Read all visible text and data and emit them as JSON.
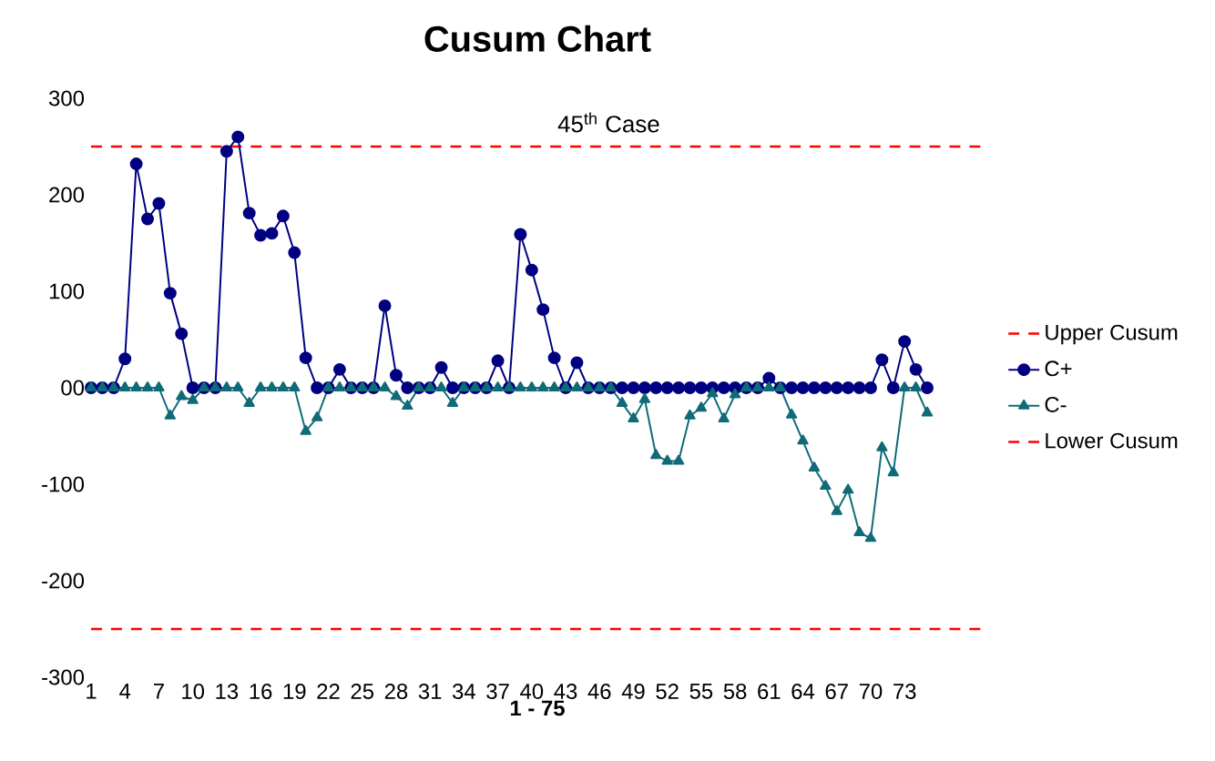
{
  "chart_data": {
    "type": "line",
    "title": "Cusum Chart",
    "xlabel": "1 - 75",
    "x": [
      1,
      2,
      3,
      4,
      5,
      6,
      7,
      8,
      9,
      10,
      11,
      12,
      13,
      14,
      15,
      16,
      17,
      18,
      19,
      20,
      21,
      22,
      23,
      24,
      25,
      26,
      27,
      28,
      29,
      30,
      31,
      32,
      33,
      34,
      35,
      36,
      37,
      38,
      39,
      40,
      41,
      42,
      43,
      44,
      45,
      46,
      47,
      48,
      49,
      50,
      51,
      52,
      53,
      54,
      55,
      56,
      57,
      58,
      59,
      60,
      61,
      62,
      63,
      64,
      65,
      66,
      67,
      68,
      69,
      70,
      71,
      72,
      73,
      74,
      75
    ],
    "series": [
      {
        "name": "C+",
        "color": "#000080",
        "marker": "circle",
        "values": [
          0,
          0,
          0,
          30,
          232,
          175,
          191,
          98,
          56,
          0,
          0,
          0,
          245,
          260,
          181,
          158,
          160,
          178,
          140,
          31,
          0,
          0,
          19,
          0,
          0,
          0,
          85,
          13,
          0,
          0,
          0,
          21,
          0,
          0,
          0,
          0,
          28,
          0,
          159,
          122,
          81,
          31,
          0,
          26,
          0,
          0,
          0,
          0,
          0,
          0,
          0,
          0,
          0,
          0,
          0,
          0,
          0,
          0,
          0,
          0,
          10,
          0,
          0,
          0,
          0,
          0,
          0,
          0,
          0,
          0,
          29,
          0,
          48,
          19,
          0
        ]
      },
      {
        "name": "C-",
        "color": "#0f6b78",
        "marker": "triangle",
        "values": [
          0,
          0,
          0,
          0,
          0,
          0,
          0,
          -29,
          -9,
          -13,
          0,
          0,
          0,
          0,
          -16,
          0,
          0,
          0,
          0,
          -45,
          -31,
          0,
          0,
          0,
          0,
          0,
          0,
          -9,
          -19,
          0,
          0,
          0,
          -16,
          0,
          0,
          0,
          0,
          0,
          0,
          0,
          0,
          0,
          0,
          0,
          0,
          0,
          0,
          -16,
          -32,
          -12,
          -70,
          -76,
          -76,
          -29,
          -21,
          -6,
          -32,
          -7,
          0,
          0,
          0,
          0,
          -28,
          -55,
          -83,
          -102,
          -128,
          -106,
          -150,
          -156,
          -62,
          -88,
          0,
          0,
          -26
        ]
      }
    ],
    "ref_lines": [
      {
        "axis": "y",
        "value": 250,
        "label": "Upper Cusum",
        "color": "#ff0000",
        "line_style": "dashed"
      },
      {
        "axis": "y",
        "value": -250,
        "label": "Lower Cusum",
        "color": "#ff0000",
        "line_style": "dashed"
      }
    ],
    "annotations": [
      "45$^{th}$ Case"
    ],
    "xlim": [
      1,
      80
    ],
    "ylim": [
      -300,
      300
    ],
    "xticks": [
      1,
      4,
      7,
      10,
      13,
      16,
      19,
      22,
      25,
      28,
      31,
      34,
      37,
      40,
      43,
      46,
      49,
      52,
      55,
      58,
      61,
      64,
      67,
      70,
      73
    ],
    "yticks": [
      -300,
      -200,
      -100,
      {
        "value": 0,
        "label": "00"
      },
      100,
      200,
      300
    ],
    "grid": false,
    "legend": "right"
  }
}
